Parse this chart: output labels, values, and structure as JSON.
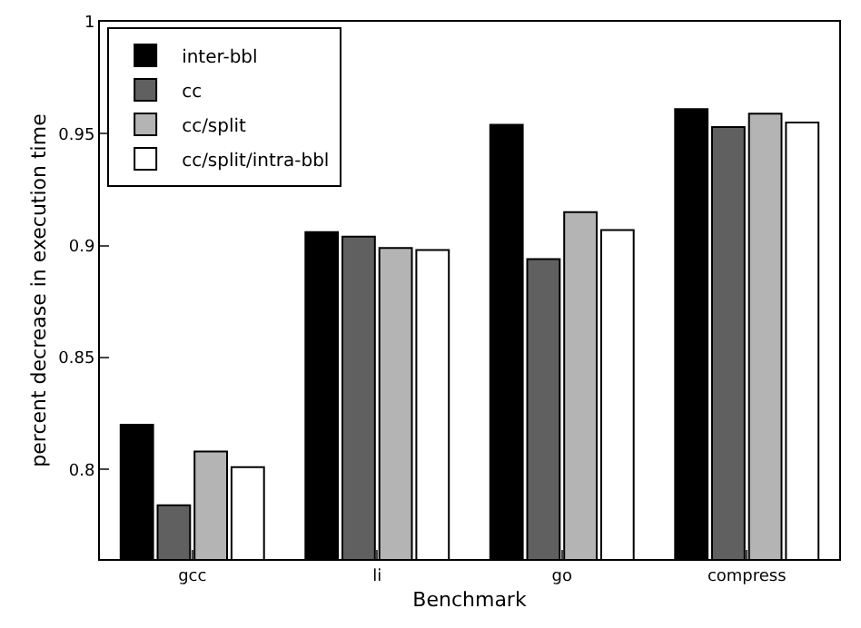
{
  "chart_data": {
    "type": "bar",
    "xlabel": "Benchmark",
    "ylabel": "percent decrease in execution time",
    "categories": [
      "gcc",
      "li",
      "go",
      "compress"
    ],
    "series": [
      {
        "name": "inter-bbl",
        "color": "#000000",
        "values": [
          0.82,
          0.906,
          0.954,
          0.961
        ]
      },
      {
        "name": "cc",
        "color": "#606060",
        "values": [
          0.784,
          0.904,
          0.894,
          0.953
        ]
      },
      {
        "name": "cc/split",
        "color": "#b4b4b4",
        "values": [
          0.808,
          0.899,
          0.915,
          0.959
        ]
      },
      {
        "name": "cc/split/intra-bbl",
        "color": "#ffffff",
        "values": [
          0.801,
          0.898,
          0.907,
          0.955
        ]
      }
    ],
    "ylim": [
      0.76,
      1
    ],
    "yticks": [
      0.8,
      0.85,
      0.9,
      0.95,
      1
    ],
    "legend": "top left"
  }
}
